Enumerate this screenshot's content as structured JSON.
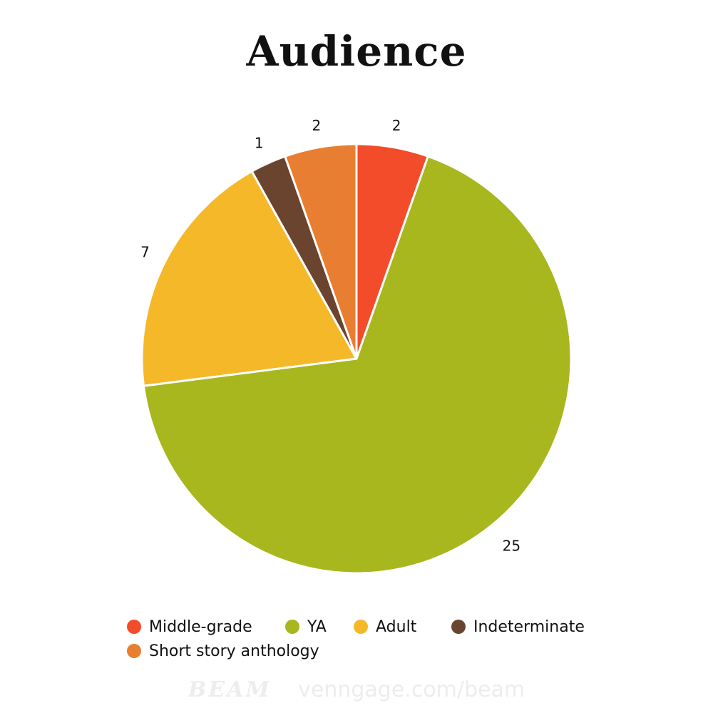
{
  "chart_data": {
    "type": "pie",
    "title": "Audience",
    "slices": [
      {
        "label": "Middle-grade",
        "value": 2,
        "color": "#f24c2a"
      },
      {
        "label": "YA",
        "value": 25,
        "color": "#a8b71e"
      },
      {
        "label": "Adult",
        "value": 7,
        "color": "#f5b829"
      },
      {
        "label": "Indeterminate",
        "value": 1,
        "color": "#6b4430"
      },
      {
        "label": "Short story anthology",
        "value": 2,
        "color": "#e87e31"
      }
    ],
    "start_angle": "top",
    "direction": "clockwise",
    "legend": "bottom"
  },
  "footer": {
    "brand": "BEAM",
    "url": "venngage.com/beam"
  }
}
